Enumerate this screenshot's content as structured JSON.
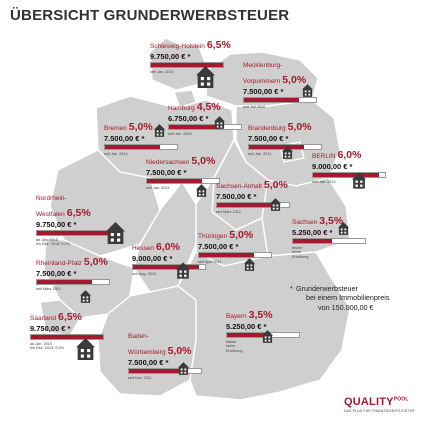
{
  "title": "ÜBERSICHT GRUNDERWERBSTEUER",
  "legend": {
    "marker": "*",
    "lines": [
      "Grunderwerbsteuer",
      "bei einem Immobilienpreis",
      "von 150.000,00 €"
    ]
  },
  "logo": {
    "brand": "QUALITY",
    "brand_small": "POOL",
    "tagline": "DAS PLUS FÜR FINANZDIENSTLEISTER"
  },
  "colors": {
    "accent": "#a3192e",
    "map_fill": "#cfcfcf",
    "map_border": "#ffffff",
    "house": "#3a3a3a",
    "bar_border": "#999999"
  },
  "icon": "house-icon",
  "chart_data": {
    "type": "bar",
    "title": "ÜBERSICHT GRUNDERWERBSTEUER",
    "xlabel": "",
    "ylabel": "",
    "ylim": [
      0,
      6.5
    ],
    "categories": [
      "Schleswig-Holstein",
      "Mecklenburg-Vorpommern",
      "Bremen",
      "Hamburg",
      "Brandenburg",
      "BERLIN",
      "Niedersachsen",
      "Sachsen-Anhalt",
      "Nordrhein-Westfalen",
      "Sachsen",
      "Hessen",
      "Thüringen",
      "Rheinland-Pfalz",
      "Saarland",
      "Bayern",
      "Baden-Württemberg"
    ],
    "values": [
      6.5,
      5.0,
      5.0,
      4.5,
      5.0,
      6.0,
      5.0,
      5.0,
      6.5,
      3.5,
      6.0,
      5.0,
      5.0,
      6.5,
      3.5,
      5.0
    ],
    "states": [
      {
        "name": "Schleswig-Holstein",
        "rate": "6,5%",
        "value": 6.5,
        "amount": "9.750,00 € *",
        "note": [
          "seit Jan. 2014"
        ]
      },
      {
        "name": "Mecklenburg-Vorpommern",
        "name_lines": [
          "Mecklenburg-",
          "Vorpommern"
        ],
        "rate": "5,0%",
        "value": 5.0,
        "amount": "7.500,00 € *",
        "note": [
          "seit Juli 2012"
        ]
      },
      {
        "name": "Bremen",
        "rate": "5,0%",
        "value": 5.0,
        "amount": "7.500,00 € *",
        "note": [
          "seit Jan. 2014"
        ]
      },
      {
        "name": "Hamburg",
        "rate": "4,5%",
        "value": 4.5,
        "amount": "6.750,00 € *",
        "note": [
          "seit Jan. 2009"
        ]
      },
      {
        "name": "Brandenburg",
        "rate": "5,0%",
        "value": 5.0,
        "amount": "7.500,00 € *",
        "note": [
          "seit Jan. 2011"
        ]
      },
      {
        "name": "BERLIN",
        "rate": "6,0%",
        "value": 6.0,
        "amount": "9.000,00 € *",
        "note": [
          "seit Jan. 2014"
        ]
      },
      {
        "name": "Niedersachsen",
        "rate": "5,0%",
        "value": 5.0,
        "amount": "7.500,00 € *",
        "note": [
          "seit Jan. 2014"
        ]
      },
      {
        "name": "Sachsen-Anhalt",
        "rate": "5,0%",
        "value": 5.0,
        "amount": "7.500,00 € *",
        "note": [
          "seit März 2012"
        ]
      },
      {
        "name": "Nordrhein-Westfalen",
        "name_lines": [
          "Nordrhein-",
          "Westfalen"
        ],
        "rate": "6,5%",
        "value": 6.5,
        "amount": "9.750,00 € *",
        "note": [
          "ab Jan. 2015",
          "bis Dez. 2014: 5,0%"
        ]
      },
      {
        "name": "Sachsen",
        "rate": "3,5%",
        "value": 3.5,
        "amount": "5.250,00 € *",
        "note": [
          "bisher",
          "keine",
          "Erhöhung"
        ]
      },
      {
        "name": "Hessen",
        "rate": "6,0%",
        "value": 6.0,
        "amount": "9.000,00 € *",
        "note": [
          "seit Aug. 2014"
        ]
      },
      {
        "name": "Thüringen",
        "rate": "5,0%",
        "value": 5.0,
        "amount": "7.500,00 € *",
        "note": [
          "seit April 2011"
        ]
      },
      {
        "name": "Rheinland-Pfalz",
        "rate": "5,0%",
        "value": 5.0,
        "amount": "7.500,00 € *",
        "note": [
          "seit März 2012"
        ]
      },
      {
        "name": "Saarland",
        "rate": "6,5%",
        "value": 6.5,
        "amount": "9.750,00 € *",
        "note": [
          "ab Jan. 2015",
          "bis Dez. 2014: 5,5%"
        ]
      },
      {
        "name": "Bayern",
        "rate": "3,5%",
        "value": 3.5,
        "amount": "5.250,00 € *",
        "note": [
          "bisher",
          "keine",
          "Erhöhung"
        ]
      },
      {
        "name": "Baden-Württemberg",
        "name_lines": [
          "Baden-",
          "Württemberg"
        ],
        "rate": "5,0%",
        "value": 5.0,
        "amount": "7.500,00 € *",
        "note": [
          "seit Nov. 2011"
        ]
      }
    ]
  }
}
